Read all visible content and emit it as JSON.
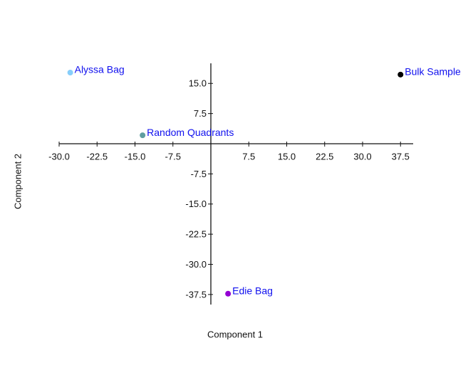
{
  "chart_data": {
    "type": "scatter",
    "x_label": "Component 1",
    "y_label": "Component 2",
    "xlim": [
      -30,
      40
    ],
    "ylim": [
      -40,
      20
    ],
    "xticks": [
      {
        "value": -30,
        "label": "-30.0"
      },
      -22.5,
      {
        "value": -15,
        "label": "-15.0"
      },
      -7.5,
      7.5,
      {
        "value": 15,
        "label": "15.0"
      },
      22.5,
      {
        "value": 30,
        "label": "30.0"
      },
      37.5
    ],
    "yticks": [
      {
        "value": 15,
        "label": "15.0"
      },
      7.5,
      -7.5,
      {
        "value": -15,
        "label": "-15.0"
      },
      -22.5,
      {
        "value": -30,
        "label": "-30.0"
      },
      -37.5
    ],
    "series": [
      {
        "name": "Alyssa Bag",
        "color": "#87cefa",
        "x": [
          -27.8
        ],
        "values": [
          17.7
        ]
      },
      {
        "name": "Bulk Sample",
        "color": "#000000",
        "x": [
          37.5
        ],
        "values": [
          17.2
        ]
      },
      {
        "name": "Random Quadrants",
        "color": "#5f9ea0",
        "x": [
          -13.5
        ],
        "values": [
          2.1
        ]
      },
      {
        "name": "Edie Bag",
        "color": "#9400d3",
        "x": [
          3.4
        ],
        "values": [
          -37.3
        ]
      }
    ]
  }
}
